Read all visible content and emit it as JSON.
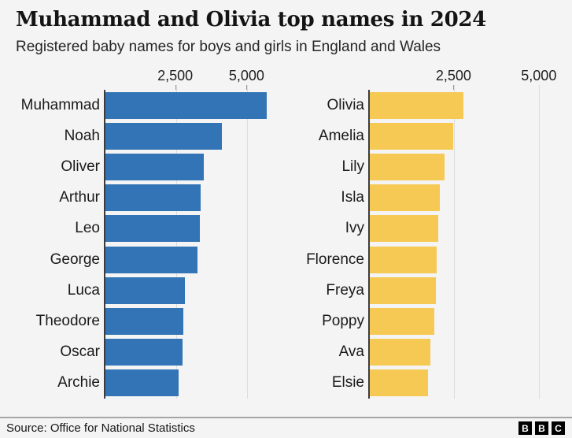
{
  "header": {
    "title": "Muhammad and Olivia top names in 2024",
    "subtitle": "Registered baby names for boys and girls in England and Wales"
  },
  "footer": {
    "source": "Source: Office for National Statistics",
    "logo_letters": [
      "B",
      "B",
      "C"
    ]
  },
  "colors": {
    "background": "#f4f4f4",
    "boys_bar": "#3274b5",
    "girls_bar": "#f6c955",
    "gridline": "#dcdcdc",
    "axis_line": "#3d3d3d",
    "divider": "#a6a6a6",
    "text": "#1a1a1a"
  },
  "chart_data": [
    {
      "type": "bar",
      "orientation": "horizontal",
      "group": "Boys",
      "title": "",
      "categories": [
        "Muhammad",
        "Noah",
        "Oliver",
        "Arthur",
        "Leo",
        "George",
        "Luca",
        "Theodore",
        "Oscar",
        "Archie"
      ],
      "values": [
        5700,
        4120,
        3490,
        3370,
        3330,
        3250,
        2800,
        2750,
        2740,
        2580
      ],
      "xlim": [
        0,
        5900
      ],
      "xticks": [
        2500,
        5000
      ],
      "xtick_labels": [
        "2,500",
        "5,000"
      ],
      "bar_color": "#3274b5",
      "grid": true,
      "legend_position": "none"
    },
    {
      "type": "bar",
      "orientation": "horizontal",
      "group": "Girls",
      "title": "",
      "categories": [
        "Olivia",
        "Amelia",
        "Lily",
        "Isla",
        "Ivy",
        "Florence",
        "Freya",
        "Poppy",
        "Ava",
        "Elsie"
      ],
      "values": [
        2770,
        2460,
        2210,
        2060,
        2020,
        1970,
        1960,
        1900,
        1800,
        1710
      ],
      "xlim": [
        0,
        5350
      ],
      "xticks": [
        2500,
        5000
      ],
      "xtick_labels": [
        "2,500",
        "5,000"
      ],
      "bar_color": "#f6c955",
      "grid": true,
      "legend_position": "none"
    }
  ]
}
